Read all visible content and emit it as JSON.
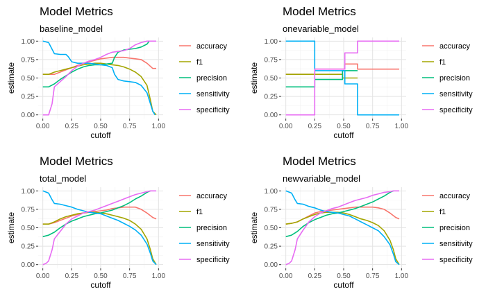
{
  "colors": {
    "accuracy": "#F8766D",
    "f1": "#A3A500",
    "precision": "#00BF7D",
    "sensitivity": "#00B0F6",
    "specificity": "#E76BF3",
    "grid_minor": "#F2F2F2",
    "grid_major": "#E3E3E3",
    "axis_text": "#4D4D4D",
    "title_text": "#000000"
  },
  "chart_data": [
    {
      "type": "line",
      "title": "Model Metrics",
      "subtitle": "baseline_model",
      "xlabel": "cutoff",
      "ylabel": "estimate",
      "xlim": [
        -0.04,
        1.04
      ],
      "ylim": [
        -0.05,
        1.05
      ],
      "x_ticks": [
        "0.00",
        "0.25",
        "0.50",
        "0.75",
        "1.00"
      ],
      "y_ticks": [
        "0.00",
        "0.25",
        "0.50",
        "0.75",
        "1.00"
      ],
      "legend": "right",
      "grid": true,
      "series": [
        {
          "name": "accuracy",
          "x": [
            0.0,
            0.05,
            0.1,
            0.15,
            0.2,
            0.25,
            0.3,
            0.35,
            0.4,
            0.45,
            0.5,
            0.55,
            0.6,
            0.65,
            0.7,
            0.75,
            0.8,
            0.85,
            0.9,
            0.95,
            0.98
          ],
          "y": [
            0.55,
            0.55,
            0.55,
            0.58,
            0.61,
            0.64,
            0.67,
            0.7,
            0.72,
            0.74,
            0.76,
            0.77,
            0.78,
            0.78,
            0.78,
            0.77,
            0.76,
            0.75,
            0.7,
            0.63,
            0.63
          ]
        },
        {
          "name": "f1",
          "x": [
            0.0,
            0.05,
            0.1,
            0.15,
            0.2,
            0.25,
            0.3,
            0.35,
            0.4,
            0.45,
            0.5,
            0.55,
            0.6,
            0.65,
            0.7,
            0.75,
            0.8,
            0.85,
            0.9,
            0.93,
            0.95,
            0.98
          ],
          "y": [
            0.55,
            0.55,
            0.58,
            0.6,
            0.62,
            0.64,
            0.66,
            0.68,
            0.69,
            0.7,
            0.7,
            0.69,
            0.68,
            0.67,
            0.65,
            0.62,
            0.58,
            0.52,
            0.4,
            0.2,
            0.05,
            0.0
          ]
        },
        {
          "name": "precision",
          "x": [
            0.0,
            0.05,
            0.1,
            0.15,
            0.2,
            0.25,
            0.3,
            0.35,
            0.4,
            0.45,
            0.5,
            0.55,
            0.6,
            0.62,
            0.65,
            0.7,
            0.75,
            0.8,
            0.85,
            0.9,
            0.92
          ],
          "y": [
            0.38,
            0.38,
            0.42,
            0.48,
            0.53,
            0.58,
            0.62,
            0.65,
            0.67,
            0.68,
            0.68,
            0.69,
            0.7,
            0.78,
            0.85,
            0.88,
            0.89,
            0.9,
            0.92,
            0.96,
            1.0
          ]
        },
        {
          "name": "sensitivity",
          "x": [
            0.0,
            0.05,
            0.1,
            0.15,
            0.2,
            0.22,
            0.25,
            0.3,
            0.35,
            0.4,
            0.45,
            0.5,
            0.55,
            0.6,
            0.62,
            0.65,
            0.7,
            0.75,
            0.8,
            0.85,
            0.9,
            0.93,
            0.95,
            0.97
          ],
          "y": [
            1.0,
            0.98,
            0.83,
            0.82,
            0.82,
            0.79,
            0.72,
            0.7,
            0.7,
            0.7,
            0.69,
            0.68,
            0.67,
            0.64,
            0.55,
            0.48,
            0.46,
            0.45,
            0.44,
            0.4,
            0.3,
            0.15,
            0.05,
            0.0
          ]
        },
        {
          "name": "specificity",
          "x": [
            0.0,
            0.05,
            0.08,
            0.1,
            0.15,
            0.2,
            0.25,
            0.3,
            0.35,
            0.4,
            0.45,
            0.5,
            0.55,
            0.6,
            0.65,
            0.7,
            0.75,
            0.8,
            0.85,
            0.9,
            0.95,
            0.98
          ],
          "y": [
            0.0,
            0.0,
            0.15,
            0.38,
            0.45,
            0.52,
            0.6,
            0.66,
            0.7,
            0.73,
            0.75,
            0.78,
            0.82,
            0.85,
            0.86,
            0.87,
            0.9,
            0.95,
            0.98,
            1.0,
            1.0,
            1.0
          ]
        }
      ]
    },
    {
      "type": "line",
      "title": "Model Metrics",
      "subtitle": "onevariable_model",
      "xlabel": "cutoff",
      "ylabel": "estimate",
      "xlim": [
        -0.04,
        1.04
      ],
      "ylim": [
        -0.05,
        1.05
      ],
      "x_ticks": [
        "0.00",
        "0.25",
        "0.50",
        "0.75",
        "1.00"
      ],
      "y_ticks": [
        "0.00",
        "0.25",
        "0.50",
        "0.75",
        "1.00"
      ],
      "legend": "right",
      "grid": true,
      "series": [
        {
          "name": "accuracy",
          "x": [
            0.0,
            0.25,
            0.25,
            0.49,
            0.49,
            0.51,
            0.51,
            0.62,
            0.62,
            0.98
          ],
          "y": [
            0.55,
            0.55,
            0.62,
            0.62,
            0.62,
            0.62,
            0.69,
            0.69,
            0.62,
            0.62
          ]
        },
        {
          "name": "f1",
          "x": [
            0.0,
            0.25,
            0.25,
            0.49,
            0.49,
            0.62
          ],
          "y": [
            0.55,
            0.55,
            0.55,
            0.55,
            0.5,
            0.5
          ]
        },
        {
          "name": "precision",
          "x": [
            0.0,
            0.25,
            0.25,
            0.49,
            0.49,
            0.62
          ],
          "y": [
            0.38,
            0.38,
            0.48,
            0.48,
            0.6,
            0.6
          ]
        },
        {
          "name": "sensitivity",
          "x": [
            0.0,
            0.25,
            0.25,
            0.49,
            0.49,
            0.51,
            0.51,
            0.62,
            0.62,
            0.98
          ],
          "y": [
            1.0,
            1.0,
            0.6,
            0.6,
            0.6,
            0.6,
            0.42,
            0.42,
            0.0,
            0.0
          ]
        },
        {
          "name": "specificity",
          "x": [
            0.0,
            0.25,
            0.25,
            0.49,
            0.49,
            0.51,
            0.51,
            0.62,
            0.62,
            0.98
          ],
          "y": [
            0.0,
            0.0,
            0.62,
            0.62,
            0.62,
            0.62,
            0.84,
            0.84,
            1.0,
            1.0
          ]
        }
      ]
    },
    {
      "type": "line",
      "title": "Model Metrics",
      "subtitle": "total_model",
      "xlabel": "cutoff",
      "ylabel": "estimate",
      "xlim": [
        -0.04,
        1.04
      ],
      "ylim": [
        -0.05,
        1.05
      ],
      "x_ticks": [
        "0.00",
        "0.25",
        "0.50",
        "0.75",
        "1.00"
      ],
      "y_ticks": [
        "0.00",
        "0.25",
        "0.50",
        "0.75",
        "1.00"
      ],
      "legend": "right",
      "grid": true,
      "series": [
        {
          "name": "accuracy",
          "x": [
            0.0,
            0.05,
            0.1,
            0.15,
            0.2,
            0.25,
            0.3,
            0.35,
            0.4,
            0.45,
            0.5,
            0.55,
            0.6,
            0.65,
            0.7,
            0.75,
            0.8,
            0.85,
            0.9,
            0.95,
            0.98
          ],
          "y": [
            0.55,
            0.55,
            0.57,
            0.6,
            0.63,
            0.66,
            0.68,
            0.7,
            0.71,
            0.72,
            0.73,
            0.74,
            0.76,
            0.77,
            0.78,
            0.78,
            0.78,
            0.75,
            0.7,
            0.64,
            0.62
          ]
        },
        {
          "name": "f1",
          "x": [
            0.0,
            0.05,
            0.1,
            0.15,
            0.2,
            0.25,
            0.3,
            0.35,
            0.4,
            0.45,
            0.5,
            0.55,
            0.6,
            0.65,
            0.7,
            0.75,
            0.8,
            0.85,
            0.9,
            0.93,
            0.95,
            0.98
          ],
          "y": [
            0.55,
            0.55,
            0.58,
            0.62,
            0.65,
            0.67,
            0.69,
            0.7,
            0.71,
            0.71,
            0.7,
            0.69,
            0.67,
            0.65,
            0.63,
            0.6,
            0.55,
            0.48,
            0.35,
            0.2,
            0.08,
            0.0
          ]
        },
        {
          "name": "precision",
          "x": [
            0.0,
            0.05,
            0.1,
            0.15,
            0.2,
            0.25,
            0.3,
            0.35,
            0.4,
            0.45,
            0.5,
            0.55,
            0.6,
            0.65,
            0.7,
            0.75,
            0.8,
            0.85,
            0.9,
            0.93
          ],
          "y": [
            0.38,
            0.4,
            0.44,
            0.5,
            0.55,
            0.59,
            0.62,
            0.65,
            0.67,
            0.69,
            0.7,
            0.72,
            0.74,
            0.77,
            0.8,
            0.84,
            0.89,
            0.93,
            0.98,
            1.0
          ]
        },
        {
          "name": "sensitivity",
          "x": [
            0.0,
            0.05,
            0.08,
            0.1,
            0.15,
            0.2,
            0.25,
            0.3,
            0.35,
            0.4,
            0.45,
            0.5,
            0.55,
            0.6,
            0.65,
            0.7,
            0.75,
            0.8,
            0.85,
            0.9,
            0.93,
            0.95,
            0.98
          ],
          "y": [
            1.0,
            0.97,
            0.88,
            0.83,
            0.82,
            0.8,
            0.78,
            0.75,
            0.73,
            0.71,
            0.7,
            0.69,
            0.66,
            0.63,
            0.6,
            0.56,
            0.52,
            0.47,
            0.4,
            0.28,
            0.15,
            0.05,
            0.0
          ]
        },
        {
          "name": "specificity",
          "x": [
            0.0,
            0.03,
            0.05,
            0.08,
            0.1,
            0.15,
            0.2,
            0.25,
            0.3,
            0.35,
            0.4,
            0.45,
            0.5,
            0.55,
            0.6,
            0.65,
            0.7,
            0.75,
            0.8,
            0.85,
            0.9,
            0.93,
            0.98
          ],
          "y": [
            0.0,
            0.02,
            0.05,
            0.2,
            0.35,
            0.45,
            0.55,
            0.62,
            0.66,
            0.7,
            0.72,
            0.74,
            0.77,
            0.8,
            0.83,
            0.86,
            0.89,
            0.92,
            0.95,
            0.97,
            0.99,
            1.0,
            1.0
          ]
        }
      ]
    },
    {
      "type": "line",
      "title": "Model Metrics",
      "subtitle": "newvariable_model",
      "xlabel": "cutoff",
      "ylabel": "estimate",
      "xlim": [
        -0.04,
        1.04
      ],
      "ylim": [
        -0.05,
        1.05
      ],
      "x_ticks": [
        "0.00",
        "0.25",
        "0.50",
        "0.75",
        "1.00"
      ],
      "y_ticks": [
        "0.00",
        "0.25",
        "0.50",
        "0.75",
        "1.00"
      ],
      "legend": "right",
      "grid": true,
      "series": [
        {
          "name": "accuracy",
          "x": [
            0.0,
            0.05,
            0.1,
            0.15,
            0.2,
            0.25,
            0.3,
            0.35,
            0.4,
            0.45,
            0.5,
            0.55,
            0.6,
            0.65,
            0.7,
            0.75,
            0.8,
            0.85,
            0.9,
            0.95,
            0.98
          ],
          "y": [
            0.55,
            0.56,
            0.58,
            0.62,
            0.66,
            0.7,
            0.72,
            0.73,
            0.74,
            0.75,
            0.76,
            0.77,
            0.78,
            0.78,
            0.78,
            0.78,
            0.77,
            0.75,
            0.7,
            0.64,
            0.62
          ]
        },
        {
          "name": "f1",
          "x": [
            0.0,
            0.05,
            0.1,
            0.15,
            0.2,
            0.25,
            0.3,
            0.35,
            0.4,
            0.45,
            0.5,
            0.55,
            0.6,
            0.65,
            0.7,
            0.75,
            0.8,
            0.85,
            0.9,
            0.93,
            0.95,
            0.98
          ],
          "y": [
            0.55,
            0.56,
            0.58,
            0.62,
            0.65,
            0.68,
            0.7,
            0.71,
            0.71,
            0.71,
            0.7,
            0.68,
            0.65,
            0.62,
            0.6,
            0.57,
            0.53,
            0.46,
            0.33,
            0.2,
            0.08,
            0.0
          ]
        },
        {
          "name": "precision",
          "x": [
            0.0,
            0.05,
            0.1,
            0.15,
            0.2,
            0.25,
            0.3,
            0.35,
            0.4,
            0.45,
            0.5,
            0.55,
            0.6,
            0.65,
            0.7,
            0.75,
            0.8,
            0.85,
            0.9,
            0.93
          ],
          "y": [
            0.38,
            0.4,
            0.45,
            0.52,
            0.57,
            0.61,
            0.64,
            0.67,
            0.69,
            0.7,
            0.72,
            0.74,
            0.76,
            0.79,
            0.82,
            0.85,
            0.89,
            0.93,
            0.98,
            1.0
          ]
        },
        {
          "name": "sensitivity",
          "x": [
            0.0,
            0.05,
            0.08,
            0.1,
            0.15,
            0.2,
            0.25,
            0.3,
            0.35,
            0.4,
            0.45,
            0.5,
            0.55,
            0.6,
            0.65,
            0.7,
            0.75,
            0.8,
            0.85,
            0.9,
            0.93,
            0.95,
            0.98
          ],
          "y": [
            1.0,
            0.97,
            0.88,
            0.83,
            0.82,
            0.79,
            0.77,
            0.74,
            0.72,
            0.71,
            0.7,
            0.68,
            0.66,
            0.62,
            0.58,
            0.54,
            0.5,
            0.46,
            0.38,
            0.27,
            0.14,
            0.04,
            0.0
          ]
        },
        {
          "name": "specificity",
          "x": [
            0.0,
            0.03,
            0.05,
            0.08,
            0.1,
            0.15,
            0.2,
            0.25,
            0.3,
            0.35,
            0.4,
            0.45,
            0.5,
            0.55,
            0.6,
            0.65,
            0.7,
            0.75,
            0.8,
            0.85,
            0.9,
            0.93,
            0.98
          ],
          "y": [
            0.0,
            0.02,
            0.05,
            0.2,
            0.35,
            0.47,
            0.58,
            0.65,
            0.7,
            0.73,
            0.76,
            0.78,
            0.81,
            0.84,
            0.87,
            0.89,
            0.91,
            0.94,
            0.96,
            0.98,
            0.99,
            1.0,
            1.0
          ]
        }
      ]
    }
  ]
}
